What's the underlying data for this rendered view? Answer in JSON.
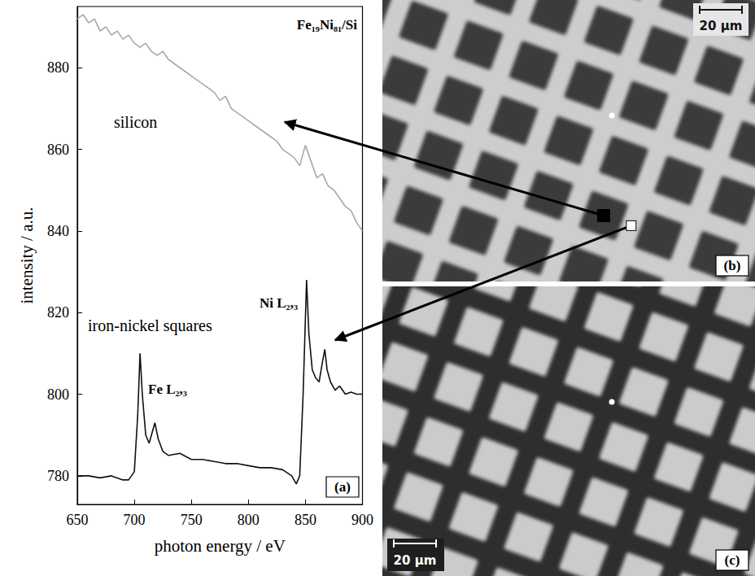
{
  "chart_data": {
    "type": "line",
    "title": "Fe₁₉Ni₈₁/Si",
    "label": "(a)",
    "x_label": "photon energy / eV",
    "y_label": "intensity / a.u.",
    "xlim": [
      650,
      900
    ],
    "xticks": [
      650,
      700,
      750,
      800,
      850,
      900
    ],
    "ylim": [
      773,
      895
    ],
    "yticks": [
      780,
      800,
      820,
      840,
      860,
      880
    ],
    "grid": false,
    "annotations": [
      "Fe L₂,₃",
      "Ni L₂,₃"
    ],
    "series": [
      {
        "name": "silicon",
        "color": "#a8a8a8",
        "x": [
          650,
          655,
          660,
          665,
          670,
          675,
          680,
          685,
          690,
          695,
          700,
          705,
          710,
          715,
          720,
          725,
          730,
          735,
          740,
          745,
          750,
          755,
          760,
          765,
          770,
          775,
          780,
          785,
          790,
          795,
          800,
          805,
          810,
          815,
          820,
          825,
          830,
          835,
          840,
          845,
          850,
          855,
          860,
          865,
          870,
          875,
          880,
          885,
          890,
          895,
          900
        ],
        "values": [
          892,
          893,
          891,
          892,
          889,
          890,
          888,
          889,
          887,
          888,
          886,
          885,
          886,
          884,
          883,
          884,
          882,
          881,
          880,
          879,
          878,
          877,
          876,
          875,
          874,
          872,
          873,
          870,
          869,
          868,
          867,
          866,
          865,
          864,
          863,
          862,
          860,
          859,
          858,
          856,
          861,
          857,
          853,
          854,
          851,
          850,
          848,
          846,
          845,
          842,
          840
        ]
      },
      {
        "name": "iron-nickel squares",
        "color": "#111111",
        "x": [
          650,
          660,
          670,
          680,
          690,
          695,
          700,
          703,
          705,
          707,
          710,
          713,
          716,
          718,
          721,
          725,
          730,
          740,
          750,
          760,
          770,
          780,
          790,
          800,
          810,
          820,
          830,
          838,
          842,
          845,
          848,
          851,
          853,
          856,
          859,
          862,
          865,
          867,
          869,
          872,
          876,
          880,
          885,
          890,
          895,
          900
        ],
        "values": [
          780,
          780,
          779.5,
          780,
          779,
          779,
          781,
          795,
          810,
          800,
          790,
          788,
          791,
          793,
          789,
          786,
          785,
          785.5,
          784,
          784,
          783.5,
          783,
          783,
          782.5,
          782,
          782,
          781.5,
          780,
          778,
          780,
          800,
          828,
          815,
          806,
          804,
          803,
          808,
          811,
          806,
          803,
          801,
          802,
          800,
          800.5,
          800,
          800
        ]
      }
    ]
  },
  "images": [
    {
      "label": "(b)",
      "scale_bar": "20 µm"
    },
    {
      "label": "(c)",
      "scale_bar": "20 µm"
    }
  ]
}
